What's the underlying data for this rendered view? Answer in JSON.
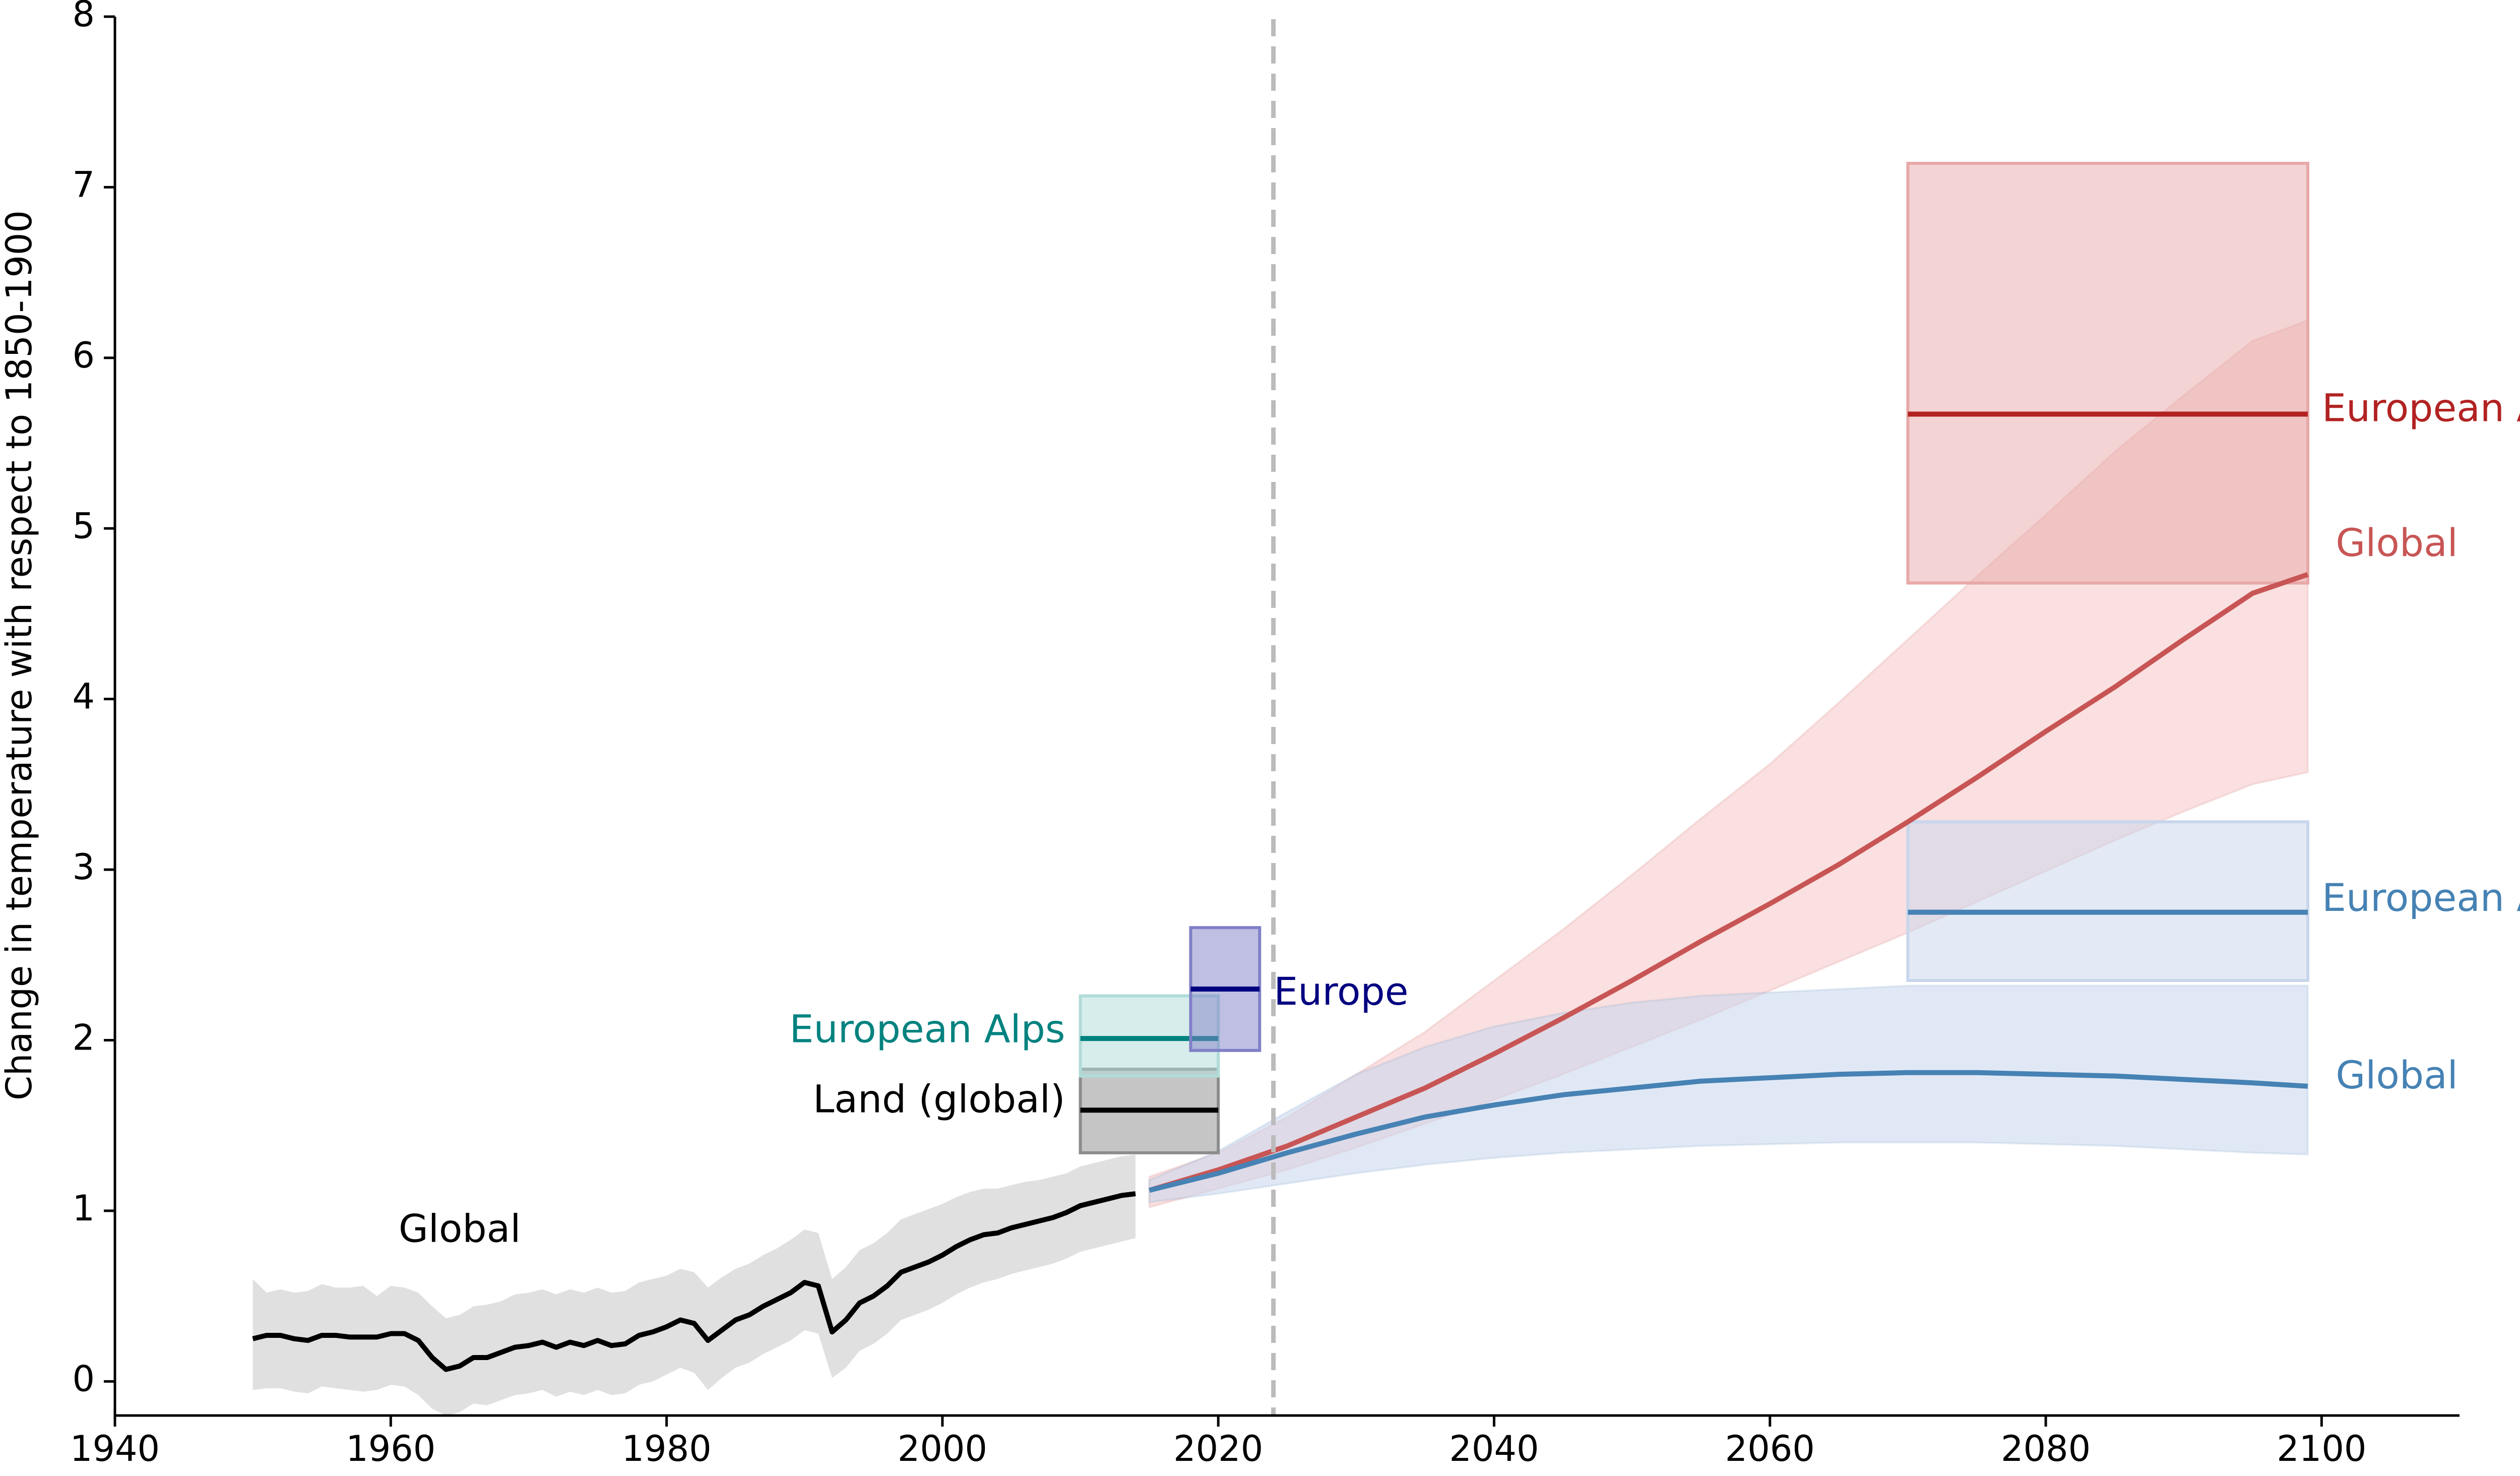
{
  "chart_data": {
    "type": "line",
    "title": "",
    "xlabel": "",
    "ylabel": "Change in temperature with respect to 1850-1900",
    "xlim": [
      1940,
      2110
    ],
    "ylim": [
      -0.2,
      8
    ],
    "xticks": [
      1940,
      1960,
      1980,
      2000,
      2020,
      2040,
      2060,
      2080,
      2100
    ],
    "yticks": [
      0,
      1,
      2,
      3,
      4,
      5,
      6,
      7,
      8
    ],
    "grid": false,
    "legend": "none",
    "reference_line": {
      "x": 2024,
      "color": "#bbbbbb",
      "style": "dashed"
    },
    "observed": {
      "color": "#000000",
      "band_color": "#e0e0e0",
      "years": [
        1950,
        1951,
        1952,
        1953,
        1954,
        1955,
        1956,
        1957,
        1958,
        1959,
        1960,
        1961,
        1962,
        1963,
        1964,
        1965,
        1966,
        1967,
        1968,
        1969,
        1970,
        1971,
        1972,
        1973,
        1974,
        1975,
        1976,
        1977,
        1978,
        1979,
        1980,
        1981,
        1982,
        1983,
        1984,
        1985,
        1986,
        1987,
        1988,
        1989,
        1990,
        1991,
        1992,
        1993,
        1994,
        1995,
        1996,
        1997,
        1998,
        1999,
        2000,
        2001,
        2002,
        2003,
        2004,
        2005,
        2006,
        2007,
        2008,
        2009,
        2010,
        2011,
        2012,
        2013,
        2014
      ],
      "values": [
        0.25,
        0.27,
        0.27,
        0.25,
        0.24,
        0.27,
        0.27,
        0.26,
        0.26,
        0.26,
        0.28,
        0.28,
        0.24,
        0.14,
        0.07,
        0.09,
        0.14,
        0.14,
        0.17,
        0.2,
        0.21,
        0.23,
        0.2,
        0.23,
        0.21,
        0.24,
        0.21,
        0.22,
        0.27,
        0.29,
        0.32,
        0.36,
        0.34,
        0.24,
        0.3,
        0.36,
        0.39,
        0.44,
        0.48,
        0.52,
        0.58,
        0.56,
        0.29,
        0.36,
        0.46,
        0.5,
        0.56,
        0.64,
        0.67,
        0.7,
        0.74,
        0.79,
        0.83,
        0.86,
        0.87,
        0.9,
        0.92,
        0.94,
        0.96,
        0.99,
        1.03,
        1.05,
        1.07,
        1.09,
        1.1
      ],
      "lower": [
        -0.05,
        -0.04,
        -0.04,
        -0.06,
        -0.07,
        -0.03,
        -0.04,
        -0.05,
        -0.06,
        -0.05,
        -0.02,
        -0.03,
        -0.08,
        -0.16,
        -0.2,
        -0.18,
        -0.13,
        -0.14,
        -0.11,
        -0.08,
        -0.07,
        -0.05,
        -0.09,
        -0.06,
        -0.08,
        -0.05,
        -0.08,
        -0.07,
        -0.02,
        0.0,
        0.04,
        0.08,
        0.05,
        -0.05,
        0.02,
        0.08,
        0.11,
        0.16,
        0.2,
        0.24,
        0.3,
        0.28,
        0.02,
        0.08,
        0.18,
        0.22,
        0.28,
        0.36,
        0.39,
        0.42,
        0.46,
        0.51,
        0.55,
        0.58,
        0.6,
        0.63,
        0.65,
        0.67,
        0.69,
        0.72,
        0.76,
        0.78,
        0.8,
        0.82,
        0.84
      ],
      "upper": [
        0.6,
        0.52,
        0.54,
        0.52,
        0.53,
        0.57,
        0.55,
        0.55,
        0.56,
        0.5,
        0.56,
        0.55,
        0.52,
        0.44,
        0.37,
        0.39,
        0.44,
        0.45,
        0.47,
        0.51,
        0.52,
        0.54,
        0.51,
        0.54,
        0.52,
        0.55,
        0.52,
        0.53,
        0.58,
        0.6,
        0.62,
        0.66,
        0.64,
        0.55,
        0.61,
        0.66,
        0.69,
        0.74,
        0.78,
        0.83,
        0.89,
        0.87,
        0.6,
        0.67,
        0.77,
        0.81,
        0.87,
        0.95,
        0.98,
        1.01,
        1.04,
        1.08,
        1.11,
        1.13,
        1.13,
        1.15,
        1.17,
        1.18,
        1.2,
        1.22,
        1.26,
        1.28,
        1.3,
        1.32,
        1.33
      ]
    },
    "series": [
      {
        "color": "#c85555",
        "band_color": "#f5c6c6",
        "x": [
          2015,
          2020,
          2025,
          2030,
          2035,
          2040,
          2045,
          2050,
          2055,
          2060,
          2065,
          2070,
          2075,
          2080,
          2085,
          2090,
          2095,
          2099
        ],
        "values": [
          1.12,
          1.24,
          1.38,
          1.55,
          1.72,
          1.92,
          2.13,
          2.35,
          2.58,
          2.8,
          3.03,
          3.28,
          3.54,
          3.81,
          4.07,
          4.35,
          4.62,
          4.73
        ],
        "lower": [
          1.02,
          1.13,
          1.24,
          1.37,
          1.51,
          1.65,
          1.8,
          1.96,
          2.12,
          2.29,
          2.46,
          2.63,
          2.81,
          2.99,
          3.17,
          3.34,
          3.5,
          3.57
        ],
        "upper": [
          1.2,
          1.34,
          1.55,
          1.8,
          2.05,
          2.35,
          2.65,
          2.97,
          3.3,
          3.62,
          3.98,
          4.35,
          4.72,
          5.08,
          5.45,
          5.78,
          6.1,
          6.22
        ]
      },
      {
        "color": "#4682b4",
        "band_color": "#c8d6ec",
        "x": [
          2015,
          2020,
          2025,
          2030,
          2035,
          2040,
          2045,
          2050,
          2055,
          2060,
          2065,
          2070,
          2075,
          2080,
          2085,
          2090,
          2095,
          2099
        ],
        "values": [
          1.12,
          1.22,
          1.34,
          1.45,
          1.55,
          1.62,
          1.68,
          1.72,
          1.76,
          1.78,
          1.8,
          1.81,
          1.81,
          1.8,
          1.79,
          1.77,
          1.75,
          1.73
        ],
        "lower": [
          1.05,
          1.1,
          1.16,
          1.22,
          1.27,
          1.31,
          1.34,
          1.36,
          1.38,
          1.39,
          1.4,
          1.4,
          1.4,
          1.39,
          1.38,
          1.36,
          1.34,
          1.33
        ],
        "upper": [
          1.18,
          1.35,
          1.58,
          1.8,
          1.96,
          2.08,
          2.16,
          2.22,
          2.26,
          2.28,
          2.3,
          2.32,
          2.32,
          2.32,
          2.32,
          2.32,
          2.32,
          2.32
        ]
      }
    ],
    "ranges": [
      {
        "label": "Land (global)",
        "color": "#000000",
        "fill": "#8c8c8c",
        "x0": 2010,
        "x1": 2020,
        "mean": 1.59,
        "low": 1.34,
        "high": 1.83,
        "label_side": "left",
        "label_y": 1.64,
        "label_color": "#000000"
      },
      {
        "label": "European Alps",
        "color": "#00827f",
        "fill": "#b0dcd8",
        "x0": 2010,
        "x1": 2020,
        "mean": 2.01,
        "low": 1.79,
        "high": 2.26,
        "label_side": "left",
        "label_y": 2.05,
        "label_color": "#00827f"
      },
      {
        "label": "Europe",
        "color": "#000080",
        "fill": "#8080c8",
        "x0": 2018,
        "x1": 2023,
        "mean": 2.3,
        "low": 1.94,
        "high": 2.66,
        "label_side": "right",
        "label_y": 2.27,
        "label_color": "#000080"
      },
      {
        "label": "European Alps",
        "color": "#b22222",
        "fill": "#e8a8a8",
        "x0": 2070,
        "x1": 2099,
        "mean": 5.67,
        "low": 4.68,
        "high": 7.14,
        "label_side": "right",
        "label_y": 5.69,
        "label_color": "#b22222"
      },
      {
        "label": "European Alps",
        "color": "#4682b4",
        "fill": "#c8d6ec",
        "x0": 2070,
        "x1": 2099,
        "mean": 2.75,
        "low": 2.35,
        "high": 3.28,
        "label_side": "right",
        "label_y": 2.82,
        "label_color": "#4682b4"
      }
    ],
    "annotations": [
      {
        "text": "Global",
        "x": 1965,
        "y": 0.88,
        "color": "#000000",
        "anchor": "middle"
      },
      {
        "text": "Global",
        "x": 2100,
        "y": 4.9,
        "color": "#c85555",
        "anchor": "start"
      },
      {
        "text": "Global",
        "x": 2100,
        "y": 1.78,
        "color": "#4682b4",
        "anchor": "start"
      }
    ]
  }
}
